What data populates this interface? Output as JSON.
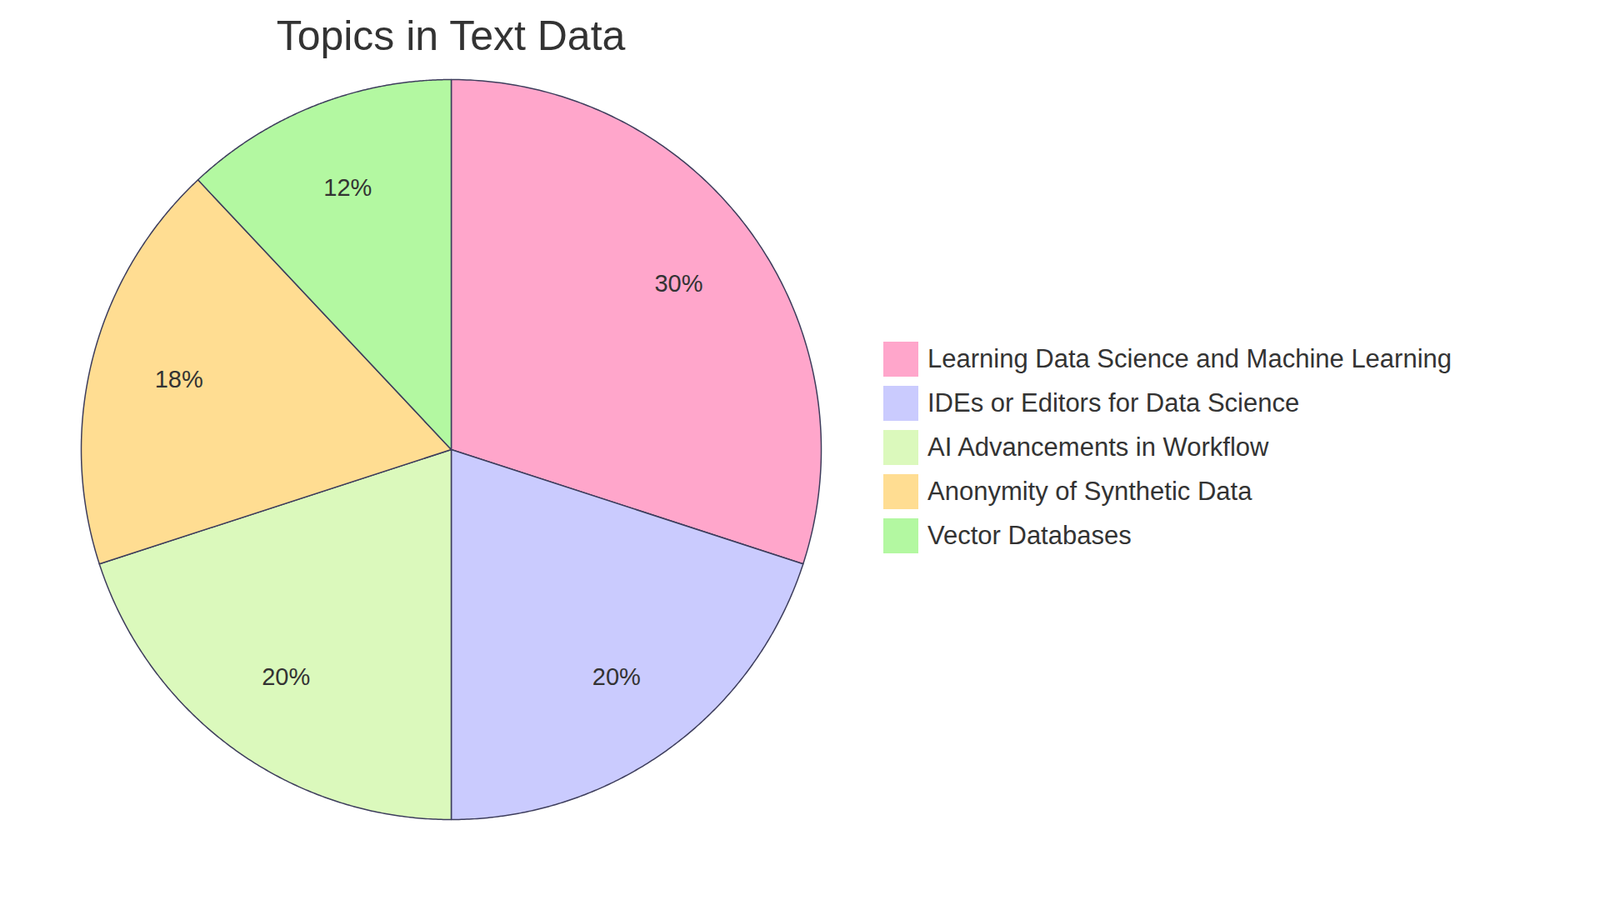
{
  "chart_data": {
    "type": "pie",
    "title": "Topics in Text Data",
    "categories": [
      "Learning Data Science and Machine Learning",
      "IDEs or Editors for Data Science",
      "AI Advancements in Workflow",
      "Anonymity of Synthetic Data",
      "Vector Databases"
    ],
    "values": [
      30,
      20,
      20,
      18,
      12
    ],
    "value_labels": [
      "30%",
      "20%",
      "20%",
      "18%",
      "12%"
    ],
    "colors": [
      "#ffa6cb",
      "#cacbfe",
      "#dbf9bc",
      "#ffdd92",
      "#b3f8a1"
    ],
    "data_labels": true,
    "legend": "right"
  }
}
